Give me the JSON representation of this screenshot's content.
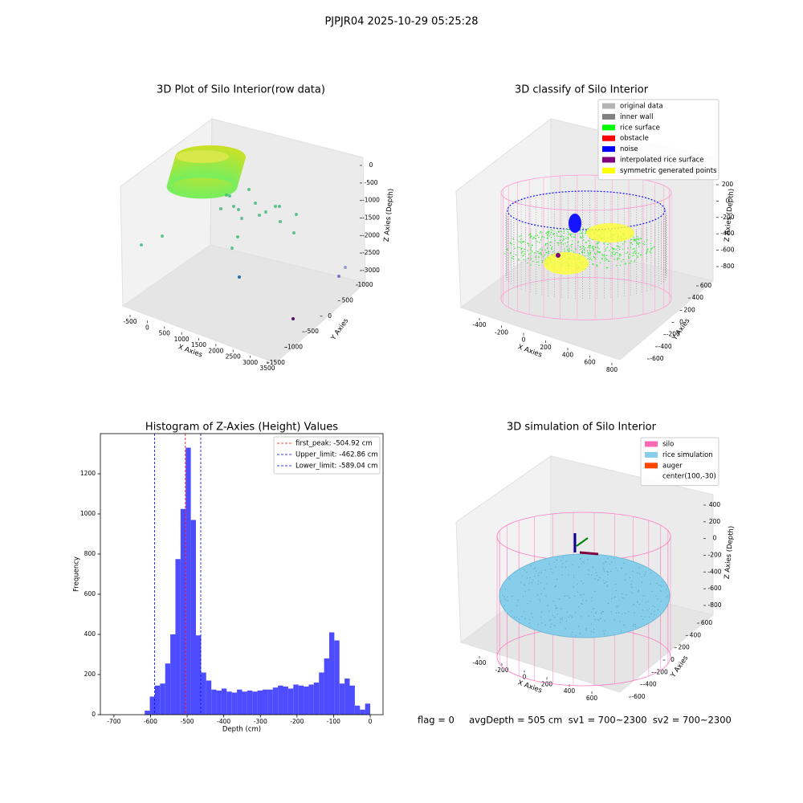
{
  "title": "PJPJR04 2025-10-29 05:25:28",
  "footer": "flag = 0     avgDepth = 505 cm  sv1 = 700~2300  sv2 = 700~2300",
  "chart_data": [
    {
      "type": "scatter3d",
      "title": "3D Plot of Silo Interior(row data)",
      "xlabel": "X Axies",
      "ylabel": "Y Axies",
      "zlabel": "Z Axies (Depth)",
      "xlim": [
        -700,
        3700
      ],
      "xticks": [
        -500,
        0,
        500,
        1000,
        1500,
        2000,
        2500,
        3000,
        3500
      ],
      "ylim": [
        -1700,
        1200
      ],
      "yticks": [
        -1500,
        -1000,
        -500,
        0,
        500,
        1000
      ],
      "zlim": [
        -3200,
        200
      ],
      "zticks": [
        0,
        -500,
        -1000,
        -1500,
        -2000,
        -2500,
        -3000
      ]
    },
    {
      "type": "scatter3d",
      "title": "3D classify of Silo Interior",
      "xlabel": "X Axies",
      "ylabel": "Y Axies",
      "zlabel": "Z Axies (Depth)",
      "xlim": [
        -500,
        900
      ],
      "xticks": [
        -400,
        -200,
        0,
        200,
        400,
        600,
        800
      ],
      "ylim": [
        -700,
        700
      ],
      "yticks": [
        -600,
        -400,
        -200,
        0,
        200,
        400,
        600
      ],
      "zlim": [
        -900,
        300
      ],
      "zticks": [
        200,
        0,
        -200,
        -400,
        -600,
        -800
      ],
      "legend": [
        {
          "name": "original data",
          "color": "#b3b3b3"
        },
        {
          "name": "inner wall",
          "color": "#808080"
        },
        {
          "name": "rice surface",
          "color": "#00ff00"
        },
        {
          "name": "obstacle",
          "color": "#ff0000"
        },
        {
          "name": "noise",
          "color": "#0000ff"
        },
        {
          "name": "interpolated rice surface",
          "color": "#800080"
        },
        {
          "name": "symmetric generated points",
          "color": "#ffff00"
        }
      ]
    },
    {
      "type": "histogram",
      "title": "Histogram of Z-Axies (Height) Values",
      "xlabel": "Depth (cm)",
      "ylabel": "Frequency",
      "color": "#4d4dff",
      "bins": [
        -616,
        -602,
        -588,
        -574,
        -560,
        -546,
        -532,
        -518,
        -504,
        -490,
        -476,
        -462,
        -448,
        -434,
        -420,
        -406,
        -392,
        -378,
        -364,
        -350,
        -336,
        -322,
        -308,
        -294,
        -280,
        -266,
        -252,
        -238,
        -224,
        -210,
        -196,
        -182,
        -168,
        -154,
        -140,
        -126,
        -112,
        -98,
        -84,
        -70,
        -56,
        -42,
        -28,
        -14,
        0
      ],
      "values": [
        20,
        90,
        145,
        155,
        255,
        400,
        775,
        1025,
        1330,
        970,
        395,
        210,
        170,
        125,
        120,
        130,
        115,
        110,
        125,
        115,
        120,
        115,
        120,
        125,
        125,
        135,
        145,
        140,
        130,
        150,
        145,
        140,
        150,
        160,
        210,
        280,
        410,
        370,
        155,
        180,
        145,
        45,
        25,
        55
      ],
      "xlim": [
        -737,
        35
      ],
      "xticks": [
        -700,
        -600,
        -500,
        -400,
        -300,
        -200,
        -100,
        0
      ],
      "ylim": [
        0,
        1400
      ],
      "yticks": [
        0,
        200,
        400,
        600,
        800,
        1000,
        1200
      ],
      "vlines": [
        {
          "name": "first_peak: -504.92 cm",
          "value": -504.92,
          "color": "#ff0000"
        },
        {
          "name": "Upper_limit: -462.86 cm",
          "value": -462.86,
          "color": "#0000ff"
        },
        {
          "name": "Lower_limit: -589.04 cm",
          "value": -589.04,
          "color": "#0000ff"
        }
      ]
    },
    {
      "type": "surface3d",
      "title": "3D simulation of Silo Interior",
      "xlabel": "X Axies",
      "ylabel": "Y Axies",
      "zlabel": "Z Axies (Depth)",
      "xlim": [
        -500,
        700
      ],
      "xticks": [
        -400,
        -200,
        0,
        200,
        400,
        600
      ],
      "ylim": [
        -700,
        700
      ],
      "yticks": [
        -600,
        -400,
        -200,
        0,
        200,
        400,
        600
      ],
      "zlim": [
        -900,
        500
      ],
      "zticks": [
        400,
        200,
        0,
        -200,
        -400,
        -600,
        -800
      ],
      "legend": [
        {
          "name": "silo",
          "color": "#ff69b4"
        },
        {
          "name": "rice simulation",
          "color": "#87ceeb"
        },
        {
          "name": "auger",
          "color": "#ff4500"
        },
        {
          "name": "center(100,-30)",
          "color": null
        }
      ]
    }
  ]
}
